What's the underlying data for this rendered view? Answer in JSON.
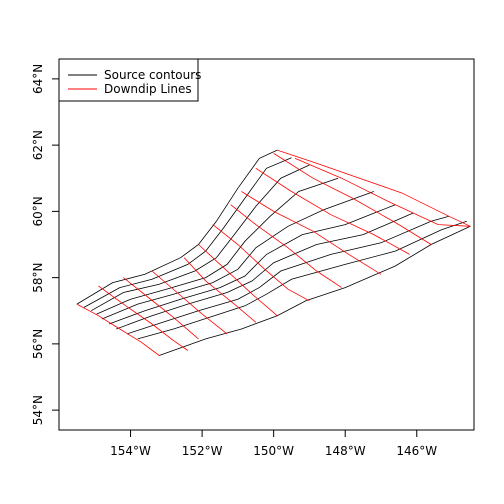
{
  "chart_data": {
    "type": "line",
    "title": "",
    "xlabel": "",
    "ylabel": "",
    "xlim": [
      -156.0,
      -144.4
    ],
    "ylim": [
      53.4,
      64.6
    ],
    "x_ticks": [
      {
        "value": -154,
        "label": "154°W"
      },
      {
        "value": -152,
        "label": "152°W"
      },
      {
        "value": -150,
        "label": "150°W"
      },
      {
        "value": -148,
        "label": "148°W"
      },
      {
        "value": -146,
        "label": "146°W"
      }
    ],
    "y_ticks": [
      {
        "value": 54,
        "label": "54°N"
      },
      {
        "value": 56,
        "label": "56°N"
      },
      {
        "value": 58,
        "label": "58°N"
      },
      {
        "value": 60,
        "label": "60°N"
      },
      {
        "value": 62,
        "label": "62°N"
      },
      {
        "value": 64,
        "label": "64°N"
      }
    ],
    "legend": {
      "position": "top-left",
      "entries": [
        {
          "label": "Source contours",
          "color": "#000000"
        },
        {
          "label": "Downdip Lines",
          "color": "#ff0000"
        }
      ]
    },
    "series": [
      {
        "kind": "contours",
        "color": "#000000",
        "lines": [
          [
            [
              -155.5,
              57.2
            ],
            [
              -154.5,
              57.85
            ],
            [
              -153.6,
              58.1
            ],
            [
              -152.6,
              58.6
            ],
            [
              -152.1,
              59.0
            ],
            [
              -151.6,
              59.7
            ],
            [
              -151.0,
              60.7
            ],
            [
              -150.4,
              61.6
            ],
            [
              -149.9,
              61.85
            ]
          ],
          [
            [
              -155.3,
              57.1
            ],
            [
              -154.3,
              57.7
            ],
            [
              -153.4,
              57.95
            ],
            [
              -152.4,
              58.4
            ],
            [
              -151.9,
              58.8
            ],
            [
              -151.4,
              59.5
            ],
            [
              -150.8,
              60.4
            ],
            [
              -150.2,
              61.3
            ],
            [
              -149.5,
              61.62
            ]
          ],
          [
            [
              -155.1,
              57.0
            ],
            [
              -154.2,
              57.55
            ],
            [
              -153.2,
              57.8
            ],
            [
              -152.2,
              58.2
            ],
            [
              -151.6,
              58.6
            ],
            [
              -151.1,
              59.3
            ],
            [
              -150.5,
              60.15
            ],
            [
              -149.8,
              61.0
            ],
            [
              -149.0,
              61.4
            ]
          ],
          [
            [
              -154.95,
              56.9
            ],
            [
              -154.0,
              57.35
            ],
            [
              -153.0,
              57.65
            ],
            [
              -151.9,
              58.0
            ],
            [
              -151.3,
              58.4
            ],
            [
              -150.8,
              59.1
            ],
            [
              -150.1,
              59.85
            ],
            [
              -149.3,
              60.6
            ],
            [
              -148.2,
              61.0
            ]
          ],
          [
            [
              -154.8,
              56.75
            ],
            [
              -153.8,
              57.2
            ],
            [
              -152.8,
              57.5
            ],
            [
              -151.7,
              57.85
            ],
            [
              -151.0,
              58.25
            ],
            [
              -150.5,
              58.9
            ],
            [
              -149.6,
              59.55
            ],
            [
              -148.6,
              60.05
            ],
            [
              -147.2,
              60.6
            ]
          ],
          [
            [
              -154.6,
              56.6
            ],
            [
              -153.6,
              57.0
            ],
            [
              -152.6,
              57.35
            ],
            [
              -151.5,
              57.7
            ],
            [
              -150.8,
              58.05
            ],
            [
              -150.2,
              58.7
            ],
            [
              -149.2,
              59.3
            ],
            [
              -148.0,
              59.6
            ],
            [
              -146.6,
              60.2
            ]
          ],
          [
            [
              -154.4,
              56.45
            ],
            [
              -153.4,
              56.85
            ],
            [
              -152.4,
              57.2
            ],
            [
              -151.3,
              57.55
            ],
            [
              -150.6,
              57.9
            ],
            [
              -150.0,
              58.45
            ],
            [
              -148.8,
              59.0
            ],
            [
              -147.5,
              59.3
            ],
            [
              -146.1,
              59.95
            ]
          ],
          [
            [
              -154.1,
              56.3
            ],
            [
              -153.1,
              56.65
            ],
            [
              -152.1,
              57.0
            ],
            [
              -151.0,
              57.35
            ],
            [
              -150.4,
              57.7
            ],
            [
              -149.8,
              58.2
            ],
            [
              -148.4,
              58.7
            ],
            [
              -147.0,
              59.05
            ],
            [
              -145.6,
              59.7
            ],
            [
              -145.1,
              59.85
            ]
          ],
          [
            [
              -153.8,
              56.15
            ],
            [
              -152.8,
              56.45
            ],
            [
              -151.8,
              56.8
            ],
            [
              -150.8,
              57.15
            ],
            [
              -150.2,
              57.5
            ],
            [
              -149.5,
              57.95
            ],
            [
              -148.0,
              58.4
            ],
            [
              -146.6,
              58.8
            ],
            [
              -145.3,
              59.45
            ],
            [
              -144.6,
              59.7
            ]
          ],
          [
            [
              -153.2,
              55.65
            ],
            [
              -151.9,
              56.15
            ],
            [
              -150.9,
              56.45
            ],
            [
              -149.9,
              56.85
            ],
            [
              -149.1,
              57.3
            ],
            [
              -148.0,
              57.7
            ],
            [
              -146.6,
              58.35
            ],
            [
              -145.6,
              59.0
            ],
            [
              -144.5,
              59.55
            ]
          ]
        ]
      },
      {
        "kind": "downdip",
        "color": "#ff0000",
        "lines": [
          [
            [
              -155.5,
              57.2
            ],
            [
              -154.9,
              56.85
            ],
            [
              -154.3,
              56.45
            ],
            [
              -153.7,
              56.05
            ],
            [
              -153.2,
              55.65
            ]
          ],
          [
            [
              -154.9,
              57.75
            ],
            [
              -154.2,
              57.2
            ],
            [
              -153.4,
              56.6
            ],
            [
              -152.8,
              56.1
            ],
            [
              -152.4,
              55.8
            ]
          ],
          [
            [
              -154.2,
              58.0
            ],
            [
              -153.5,
              57.4
            ],
            [
              -152.8,
              56.8
            ],
            [
              -152.1,
              56.15
            ]
          ],
          [
            [
              -153.4,
              58.2
            ],
            [
              -152.7,
              57.55
            ],
            [
              -152.0,
              56.9
            ],
            [
              -151.3,
              56.3
            ]
          ],
          [
            [
              -152.5,
              58.6
            ],
            [
              -151.9,
              57.9
            ],
            [
              -151.1,
              57.2
            ],
            [
              -150.5,
              56.65
            ]
          ],
          [
            [
              -152.1,
              59.0
            ],
            [
              -151.4,
              58.3
            ],
            [
              -150.6,
              57.5
            ],
            [
              -149.9,
              56.85
            ]
          ],
          [
            [
              -151.7,
              59.6
            ],
            [
              -151.0,
              59.0
            ],
            [
              -150.3,
              58.3
            ],
            [
              -149.6,
              57.65
            ],
            [
              -149.0,
              57.3
            ]
          ],
          [
            [
              -151.2,
              60.2
            ],
            [
              -150.5,
              59.6
            ],
            [
              -149.6,
              58.9
            ],
            [
              -148.8,
              58.2
            ],
            [
              -148.1,
              57.7
            ]
          ],
          [
            [
              -150.9,
              60.6
            ],
            [
              -150.0,
              60.0
            ],
            [
              -148.9,
              59.4
            ],
            [
              -147.9,
              58.7
            ],
            [
              -147.0,
              58.1
            ]
          ],
          [
            [
              -150.5,
              61.3
            ],
            [
              -149.5,
              60.6
            ],
            [
              -148.4,
              59.9
            ],
            [
              -147.2,
              59.3
            ],
            [
              -146.2,
              58.7
            ]
          ],
          [
            [
              -150.0,
              61.75
            ],
            [
              -148.9,
              61.0
            ],
            [
              -147.8,
              60.4
            ],
            [
              -146.5,
              59.6
            ],
            [
              -145.6,
              59.0
            ]
          ],
          [
            [
              -149.4,
              61.6
            ],
            [
              -148.1,
              61.0
            ],
            [
              -146.8,
              60.3
            ],
            [
              -145.4,
              59.6
            ],
            [
              -144.5,
              59.55
            ]
          ],
          [
            [
              -149.9,
              61.85
            ],
            [
              -148.8,
              61.45
            ],
            [
              -147.6,
              61.0
            ],
            [
              -146.4,
              60.55
            ],
            [
              -145.1,
              59.85
            ],
            [
              -144.5,
              59.55
            ]
          ]
        ]
      }
    ]
  }
}
